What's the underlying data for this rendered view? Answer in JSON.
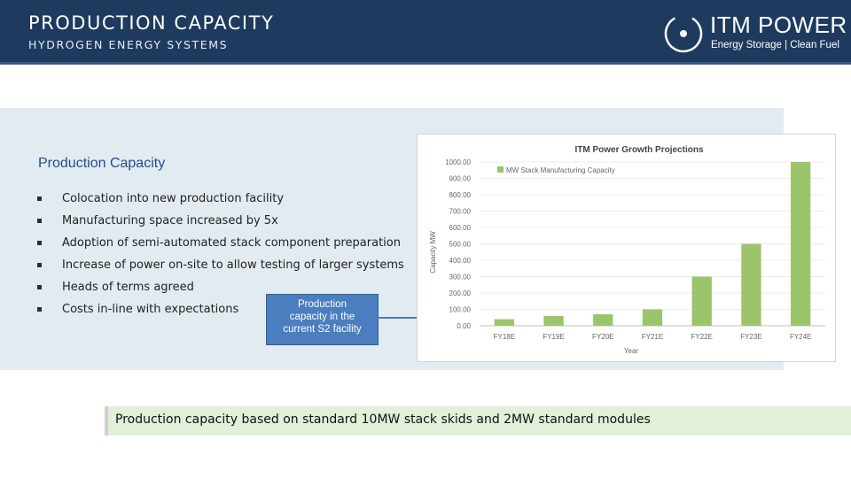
{
  "header": {
    "title": "PRODUCTION CAPACITY",
    "subtitle": "HYDROGEN ENERGY SYSTEMS",
    "logo_name": "ITM POWER",
    "logo_tagline": "Energy Storage | Clean Fuel"
  },
  "section": {
    "title": "Production Capacity",
    "bullets": [
      "Colocation into new production facility",
      "Manufacturing space increased by 5x",
      "Adoption of semi-automated stack component preparation",
      "Increase of power on-site to allow testing of larger systems",
      "Heads of terms agreed",
      "Costs in-line with expectations"
    ]
  },
  "callout": {
    "line1": "Production",
    "line2": "capacity in the",
    "line3": "current S2 facility"
  },
  "footer": {
    "text": "Production capacity based on standard 10MW stack skids and 2MW standard modules"
  },
  "colors": {
    "header_bg": "#1f3a5f",
    "bar": "#9bc46b",
    "callout_bg": "#4a7ebf",
    "footer_bg": "#e2efd9"
  },
  "chart_data": {
    "type": "bar",
    "title": "ITM Power Growth Projections",
    "xlabel": "Year",
    "ylabel": "Capacity MW",
    "categories": [
      "FY18E",
      "FY19E",
      "FY20E",
      "FY21E",
      "FY22E",
      "FY23E",
      "FY24E"
    ],
    "series": [
      {
        "name": "MW Stack Manufacturing Capacity",
        "values": [
          40,
          60,
          70,
          100,
          300,
          500,
          1000
        ]
      }
    ],
    "ylim": [
      0,
      1000
    ],
    "yticks": [
      "0.00",
      "100.00",
      "200.00",
      "300.00",
      "400.00",
      "500.00",
      "600.00",
      "700.00",
      "800.00",
      "900.00",
      "1000.00"
    ],
    "grid": true,
    "legend": "top-left"
  }
}
